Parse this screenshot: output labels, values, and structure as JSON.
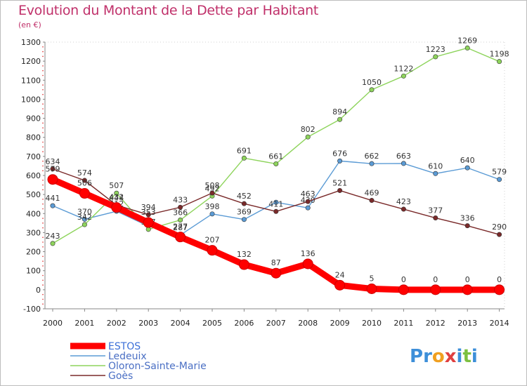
{
  "title": "Evolution du Montant de la Dette par Habitant",
  "subtitle": "(en €)",
  "logo": "Proxiti",
  "chart_data": {
    "type": "line",
    "x": [
      "2000",
      "2001",
      "2002",
      "2003",
      "2004",
      "2005",
      "2006",
      "2007",
      "2008",
      "2009",
      "2010",
      "2011",
      "2012",
      "2013",
      "2014"
    ],
    "ylim": [
      -100,
      1300
    ],
    "yticks": [
      -100,
      0,
      100,
      200,
      300,
      400,
      500,
      600,
      700,
      800,
      900,
      1000,
      1100,
      1200,
      1300
    ],
    "grid": false,
    "legend": "bottom-left",
    "series": [
      {
        "name": "Ledeuix",
        "color": "#5b9bd5",
        "values": [
          441,
          370,
          412,
          334,
          287,
          398,
          369,
          459,
          430,
          676,
          662,
          663,
          610,
          640,
          579
        ],
        "labels": [
          "441",
          "370",
          "412",
          "",
          "287",
          "398",
          "369",
          "",
          "430",
          "676",
          "662",
          "663",
          "610",
          "640",
          "579"
        ]
      },
      {
        "name": "Oloron-Sainte-Marie",
        "color": "#8ed45c",
        "values": [
          243,
          342,
          507,
          317,
          366,
          492,
          691,
          661,
          802,
          894,
          1050,
          1122,
          1223,
          1269,
          1198
        ],
        "labels": [
          "243",
          "342",
          "507",
          "317",
          "366",
          "492",
          "691",
          "661",
          "802",
          "894",
          "1050",
          "1122",
          "1223",
          "1269",
          "1198"
        ]
      },
      {
        "name": "Goès",
        "color": "#7a2a2a",
        "values": [
          634,
          574,
          444,
          394,
          433,
          508,
          452,
          411,
          463,
          521,
          469,
          423,
          377,
          336,
          290
        ],
        "labels": [
          "634",
          "574",
          "444",
          "394",
          "433",
          "508",
          "452",
          "411",
          "463",
          "521",
          "469",
          "423",
          "377",
          "336",
          "290"
        ]
      },
      {
        "name": "ESTOS",
        "color": "#ff0000",
        "values": [
          579,
          506,
          432,
          353,
          277,
          207,
          132,
          87,
          136,
          24,
          5,
          0,
          0,
          0,
          0
        ],
        "labels": [
          "579",
          "506",
          "432",
          "353",
          "277",
          "207",
          "132",
          "87",
          "136",
          "24",
          "5",
          "0",
          "0",
          "0",
          "0"
        ]
      }
    ]
  }
}
